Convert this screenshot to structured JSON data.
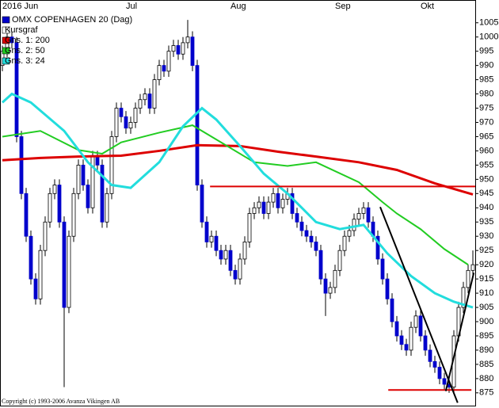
{
  "chart_data": {
    "type": "candlestick",
    "title": "OMX COPENHAGEN 20 (Dag)",
    "name": "Kursgraf",
    "copyright": "Copyright (c) 1993-2006 Avanza Vikingen AB",
    "categories": [
      "2016 Jun",
      null,
      null,
      null,
      null,
      null,
      null,
      null,
      null,
      null,
      null,
      null,
      null,
      null,
      null,
      null,
      null,
      null,
      null,
      null,
      null,
      null,
      null,
      null,
      null,
      null,
      "Jul",
      null,
      null,
      null,
      null,
      null,
      null,
      null,
      null,
      null,
      null,
      null,
      null,
      null,
      null,
      null,
      null,
      null,
      null,
      null,
      null,
      null,
      "Aug",
      null,
      null,
      null,
      null,
      null,
      null,
      null,
      null,
      null,
      null,
      null,
      null,
      null,
      null,
      null,
      null,
      null,
      null,
      null,
      null,
      null,
      "Sep",
      null,
      null,
      null,
      null,
      null,
      null,
      null,
      null,
      null,
      null,
      null,
      null,
      null,
      null,
      null,
      null,
      null,
      "Okt",
      null,
      null,
      null,
      null,
      null,
      null,
      null,
      null,
      null,
      null,
      null
    ],
    "open": [
      990,
      995,
      1000,
      998,
      965,
      945,
      930,
      915,
      908,
      925,
      935,
      945,
      948,
      935,
      905,
      930,
      945,
      955,
      948,
      940,
      958,
      955,
      935,
      945,
      965,
      975,
      972,
      968,
      970,
      975,
      978,
      980,
      975,
      985,
      990,
      988,
      995,
      997,
      994,
      998,
      1000,
      990,
      948,
      935,
      928,
      930,
      925,
      922,
      925,
      918,
      915,
      922,
      928,
      938,
      940,
      942,
      938,
      942,
      945,
      940,
      943,
      945,
      938,
      935,
      932,
      930,
      928,
      925,
      915,
      910,
      912,
      918,
      925,
      930,
      932,
      936,
      938,
      940,
      935,
      930,
      922,
      915,
      908,
      900,
      895,
      892,
      890,
      898,
      902,
      895,
      890,
      886,
      884,
      880,
      878,
      877,
      895,
      905,
      912,
      918
    ],
    "high": [
      997,
      1002,
      1002,
      1000,
      967,
      947,
      932,
      917,
      927,
      937,
      947,
      950,
      950,
      937,
      932,
      947,
      957,
      957,
      950,
      960,
      960,
      957,
      947,
      967,
      977,
      977,
      974,
      972,
      977,
      980,
      982,
      982,
      987,
      992,
      992,
      997,
      999,
      999,
      1000,
      1006,
      1002,
      992,
      950,
      937,
      932,
      932,
      927,
      927,
      927,
      920,
      924,
      930,
      940,
      942,
      944,
      944,
      944,
      947,
      947,
      945,
      947,
      947,
      940,
      937,
      934,
      932,
      930,
      927,
      917,
      914,
      920,
      927,
      932,
      934,
      938,
      940,
      942,
      942,
      937,
      932,
      924,
      917,
      910,
      902,
      897,
      894,
      900,
      904,
      904,
      897,
      892,
      888,
      886,
      882,
      880,
      897,
      907,
      914,
      920,
      925
    ],
    "low": [
      988,
      993,
      996,
      963,
      943,
      928,
      913,
      906,
      906,
      923,
      933,
      943,
      933,
      877,
      903,
      928,
      943,
      946,
      938,
      938,
      953,
      933,
      933,
      943,
      963,
      970,
      966,
      966,
      968,
      973,
      976,
      973,
      973,
      983,
      986,
      986,
      993,
      992,
      992,
      996,
      988,
      946,
      933,
      926,
      926,
      923,
      920,
      920,
      916,
      913,
      913,
      920,
      926,
      936,
      938,
      936,
      936,
      940,
      938,
      938,
      941,
      936,
      933,
      930,
      928,
      926,
      923,
      913,
      902,
      908,
      910,
      916,
      923,
      928,
      930,
      934,
      936,
      933,
      928,
      920,
      913,
      906,
      898,
      893,
      890,
      888,
      888,
      896,
      893,
      888,
      884,
      882,
      878,
      876,
      875,
      875,
      893,
      903,
      910,
      916
    ],
    "close": [
      995,
      1000,
      998,
      965,
      945,
      930,
      915,
      908,
      925,
      935,
      945,
      948,
      935,
      905,
      930,
      945,
      955,
      948,
      940,
      958,
      955,
      935,
      945,
      965,
      975,
      972,
      968,
      970,
      975,
      978,
      980,
      975,
      985,
      990,
      988,
      995,
      997,
      994,
      998,
      1000,
      990,
      948,
      935,
      928,
      930,
      925,
      922,
      925,
      918,
      915,
      922,
      928,
      938,
      940,
      942,
      938,
      942,
      945,
      940,
      943,
      945,
      938,
      935,
      932,
      930,
      928,
      925,
      915,
      910,
      912,
      918,
      925,
      930,
      932,
      936,
      938,
      940,
      935,
      930,
      922,
      915,
      908,
      900,
      895,
      892,
      890,
      898,
      902,
      895,
      890,
      886,
      884,
      880,
      878,
      877,
      895,
      905,
      912,
      918,
      920
    ],
    "color_down": "#0000cc",
    "color_up": "#ffffff",
    "series": [
      {
        "name": "Gns. 1: 200",
        "color": "#dd0000",
        "width": 3,
        "x": [
          0,
          8,
          16,
          25,
          33,
          41,
          50,
          58,
          66,
          75,
          83,
          91,
          99
        ],
        "values": [
          956.7,
          957.5,
          958,
          958.3,
          960,
          962,
          961.7,
          959.7,
          958,
          956,
          953.3,
          948.6,
          944.7
        ]
      },
      {
        "name": "Gns. 2: 50",
        "color": "#22cc22",
        "width": 2,
        "x": [
          0,
          8,
          16,
          21,
          25,
          33,
          40,
          46,
          53,
          60,
          66,
          75,
          80,
          83,
          88,
          93,
          98
        ],
        "values": [
          965,
          967,
          960.3,
          959,
          963,
          966.4,
          969,
          963,
          956,
          954.7,
          956,
          949,
          942,
          938,
          932.5,
          925.5,
          920
        ]
      },
      {
        "name": "Gns. 3: 24",
        "color": "#22dddd",
        "width": 3,
        "x": [
          0,
          2,
          6,
          13,
          18,
          23,
          27,
          33,
          38,
          42,
          45,
          50,
          55,
          60,
          66,
          71,
          76,
          81,
          86,
          91,
          95,
          99
        ],
        "values": [
          977,
          980,
          977,
          967,
          956,
          948,
          947,
          956,
          968.6,
          975,
          971,
          961.7,
          952,
          945,
          935,
          932.5,
          934,
          924,
          916,
          910,
          907,
          905
        ]
      }
    ],
    "lines": [
      {
        "color": "#dd0000",
        "x": [
          43.7,
          99.5
        ],
        "values": [
          947.5,
          947.5
        ]
      },
      {
        "color": "#dd0000",
        "x": [
          81.2,
          98.7
        ],
        "values": [
          876,
          876
        ]
      },
      {
        "color": "#000000",
        "x": [
          79.5,
          95.8
        ],
        "values": [
          940.3,
          871.5
        ]
      },
      {
        "color": "#000000",
        "x": [
          93.3,
          99.2
        ],
        "values": [
          875.6,
          917.2
        ]
      }
    ],
    "ylim": [
      870.5,
      1013
    ],
    "yticks": [
      875,
      880,
      885,
      890,
      895,
      900,
      905,
      910,
      915,
      920,
      925,
      930,
      935,
      940,
      945,
      950,
      955,
      960,
      965,
      970,
      975,
      980,
      985,
      990,
      995,
      1000,
      1005
    ]
  }
}
